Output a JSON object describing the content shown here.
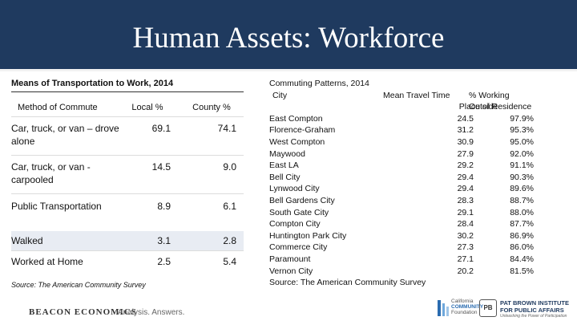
{
  "slide": {
    "title": "Human Assets: Workforce"
  },
  "left_table": {
    "title": "Means of Transportation to Work, 2014",
    "headers": [
      "Method of Commute",
      "Local %",
      "County %"
    ],
    "rows": [
      {
        "label": "Car, truck, or van – drove alone",
        "local": "69.1",
        "county": "74.1"
      },
      {
        "label": "Car, truck, or van - carpooled",
        "local": "14.5",
        "county": "9.0"
      },
      {
        "label": "Public Transportation",
        "local": "8.9",
        "county": "6.1"
      },
      {
        "label": "Walked",
        "local": "3.1",
        "county": "2.8"
      },
      {
        "label": "Worked at Home",
        "local": "2.5",
        "county": "5.4"
      }
    ],
    "source": "Source: The American Community Survey"
  },
  "right_table": {
    "title": "Commuting Patterns, 2014",
    "headers": {
      "city": "City",
      "mean": "Mean Travel Time",
      "pct_line1": "% Working Outside",
      "pct_line2": "Place of Residence"
    },
    "rows": [
      {
        "city": "East Compton",
        "mean": "24.5",
        "pct": "97.9%"
      },
      {
        "city": "Florence-Graham",
        "mean": "31.2",
        "pct": "95.3%"
      },
      {
        "city": "West Compton",
        "mean": "30.9",
        "pct": "95.0%"
      },
      {
        "city": "Maywood",
        "mean": "27.9",
        "pct": "92.0%"
      },
      {
        "city": "East LA",
        "mean": "29.2",
        "pct": "91.1%"
      },
      {
        "city": "Bell City",
        "mean": "29.4",
        "pct": "90.3%"
      },
      {
        "city": "Lynwood City",
        "mean": "29.4",
        "pct": "89.6%"
      },
      {
        "city": "Bell Gardens City",
        "mean": "28.3",
        "pct": "88.7%"
      },
      {
        "city": "South Gate City",
        "mean": "29.1",
        "pct": "88.0%"
      },
      {
        "city": "Compton City",
        "mean": "28.4",
        "pct": "87.7%"
      },
      {
        "city": "Huntington Park City",
        "mean": "30.2",
        "pct": "86.9%"
      },
      {
        "city": "Commerce City",
        "mean": "27.3",
        "pct": "86.0%"
      },
      {
        "city": "Paramount",
        "mean": "27.1",
        "pct": "84.4%"
      },
      {
        "city": "Vernon City",
        "mean": "20.2",
        "pct": "81.5%"
      }
    ],
    "source": "Source: The American Community Survey"
  },
  "footer": {
    "beacon_logo": "BEACON ECONOMICS",
    "tagline": "Analysis. Answers.",
    "ccf_line1": "California",
    "ccf_line2": "COMMUNITY",
    "ccf_line3": "Foundation",
    "pb_mark": "PB",
    "pb_line1": "PAT BROWN INSTITUTE",
    "pb_line2": "FOR PUBLIC AFFAIRS",
    "pb_sub": "Unleashing the Power of Participation"
  }
}
